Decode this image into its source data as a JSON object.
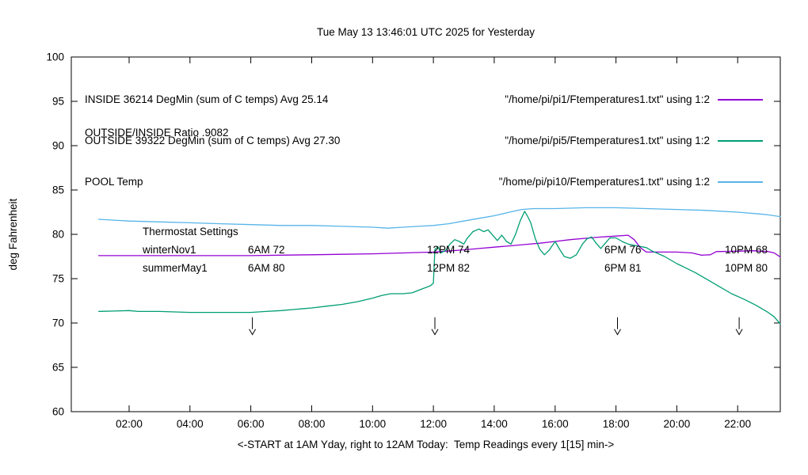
{
  "title": "Tue May 13 13:46:01 UTC 2025 for Yesterday",
  "y_axis_label": "deg Fahrenheit",
  "x_axis_label": "<-START at 1AM Yday, right to 12AM Today:  Temp Readings every 1[15] min->",
  "ratio_text": "OUTSIDE/INSIDE Ratio .9082",
  "legend": [
    {
      "label": "INSIDE 36214 DegMin (sum of C temps) Avg 25.14",
      "file": "\"/home/pi/pi1/Ftemperatures1.txt\" using 1:2",
      "color": "#9400d3"
    },
    {
      "label": "OUTSIDE 39322 DegMin (sum of C temps) Avg 27.30",
      "file": "\"/home/pi/pi5/Ftemperatures1.txt\" using 1:2",
      "color": "#009e73"
    },
    {
      "label": "POOL Temp",
      "file": "\"/home/pi/pi10/Ftemperatures1.txt\" using 1:2",
      "color": "#56b4e9"
    }
  ],
  "thermostat": {
    "title": "Thermostat Settings",
    "rows": [
      {
        "name": "winterNov1",
        "settings": [
          "6AM 72",
          "12PM 74",
          "6PM 76",
          "10PM 68"
        ]
      },
      {
        "name": "summerMay1",
        "settings": [
          "6AM 80",
          "12PM 82",
          "6PM 81",
          "10PM 80"
        ]
      }
    ]
  },
  "chart_data": {
    "type": "line",
    "title": "Tue May 13 13:46:01 UTC 2025 for Yesterday",
    "xlabel": "<-START at 1AM Yday, right to 12AM Today:  Temp Readings every 1[15] min->",
    "ylabel": "deg Fahrenheit",
    "ylim": [
      60,
      100
    ],
    "xlim": [
      0.1,
      23.4
    ],
    "grid": false,
    "legend_position": "top-left-inside",
    "y_ticks": [
      60,
      65,
      70,
      75,
      80,
      85,
      90,
      95,
      100
    ],
    "x_ticks": [
      {
        "value": 2,
        "label": "02:00"
      },
      {
        "value": 4,
        "label": "04:00"
      },
      {
        "value": 6,
        "label": "06:00"
      },
      {
        "value": 8,
        "label": "08:00"
      },
      {
        "value": 10,
        "label": "10:00"
      },
      {
        "value": 12,
        "label": "12:00"
      },
      {
        "value": 14,
        "label": "14:00"
      },
      {
        "value": 16,
        "label": "16:00"
      },
      {
        "value": 18,
        "label": "18:00"
      },
      {
        "value": 20,
        "label": "20:00"
      },
      {
        "value": 22,
        "label": "22:00"
      }
    ],
    "arrow_hours": [
      6.05,
      12.05,
      18.05,
      22.05
    ],
    "series": [
      {
        "name": "INSIDE",
        "color": "#9400d3",
        "points": [
          [
            1,
            77.6
          ],
          [
            2,
            77.6
          ],
          [
            3,
            77.6
          ],
          [
            4,
            77.6
          ],
          [
            5,
            77.6
          ],
          [
            6,
            77.6
          ],
          [
            7,
            77.65
          ],
          [
            8,
            77.7
          ],
          [
            9,
            77.75
          ],
          [
            10,
            77.8
          ],
          [
            11,
            77.9
          ],
          [
            12,
            78.0
          ],
          [
            12.4,
            78.1
          ],
          [
            13,
            78.25
          ],
          [
            13.5,
            78.4
          ],
          [
            14,
            78.55
          ],
          [
            14.5,
            78.7
          ],
          [
            15,
            78.85
          ],
          [
            15.5,
            79.0
          ],
          [
            16,
            79.2
          ],
          [
            16.5,
            79.4
          ],
          [
            17,
            79.55
          ],
          [
            17.5,
            79.7
          ],
          [
            18,
            79.8
          ],
          [
            18.4,
            79.9
          ],
          [
            18.6,
            79.4
          ],
          [
            18.8,
            78.5
          ],
          [
            19,
            78.0
          ],
          [
            19.5,
            78.0
          ],
          [
            20,
            78.0
          ],
          [
            20.5,
            77.9
          ],
          [
            20.8,
            77.65
          ],
          [
            21.1,
            77.7
          ],
          [
            21.3,
            78.05
          ],
          [
            22,
            78.1
          ],
          [
            22.5,
            78.15
          ],
          [
            23,
            78.05
          ],
          [
            23.2,
            77.9
          ],
          [
            23.4,
            77.45
          ]
        ]
      },
      {
        "name": "OUTSIDE",
        "color": "#009e73",
        "points": [
          [
            1,
            71.3
          ],
          [
            1.5,
            71.35
          ],
          [
            2,
            71.4
          ],
          [
            2.3,
            71.3
          ],
          [
            3,
            71.3
          ],
          [
            4,
            71.2
          ],
          [
            5,
            71.2
          ],
          [
            6,
            71.2
          ],
          [
            6.5,
            71.3
          ],
          [
            7,
            71.4
          ],
          [
            7.5,
            71.55
          ],
          [
            8,
            71.7
          ],
          [
            8.5,
            71.9
          ],
          [
            9,
            72.1
          ],
          [
            9.5,
            72.4
          ],
          [
            10,
            72.8
          ],
          [
            10.3,
            73.1
          ],
          [
            10.6,
            73.3
          ],
          [
            11,
            73.3
          ],
          [
            11.3,
            73.4
          ],
          [
            11.6,
            73.8
          ],
          [
            11.9,
            74.2
          ],
          [
            12,
            74.5
          ],
          [
            12.05,
            78.3
          ],
          [
            12.15,
            78.6
          ],
          [
            12.25,
            77.9
          ],
          [
            12.4,
            78.2
          ],
          [
            12.55,
            78.9
          ],
          [
            12.7,
            79.4
          ],
          [
            12.85,
            79.2
          ],
          [
            13,
            78.9
          ],
          [
            13.1,
            79.5
          ],
          [
            13.3,
            80.3
          ],
          [
            13.5,
            80.6
          ],
          [
            13.65,
            80.3
          ],
          [
            13.8,
            80.5
          ],
          [
            13.95,
            79.9
          ],
          [
            14.1,
            79.3
          ],
          [
            14.25,
            79.9
          ],
          [
            14.4,
            79.2
          ],
          [
            14.55,
            78.9
          ],
          [
            14.7,
            80.0
          ],
          [
            14.85,
            81.5
          ],
          [
            15,
            82.6
          ],
          [
            15.1,
            82.0
          ],
          [
            15.2,
            81.3
          ],
          [
            15.35,
            79.5
          ],
          [
            15.5,
            78.3
          ],
          [
            15.65,
            77.7
          ],
          [
            15.8,
            78.2
          ],
          [
            16,
            79.2
          ],
          [
            16.15,
            78.3
          ],
          [
            16.3,
            77.5
          ],
          [
            16.5,
            77.3
          ],
          [
            16.7,
            77.7
          ],
          [
            16.9,
            78.9
          ],
          [
            17.05,
            79.5
          ],
          [
            17.2,
            79.7
          ],
          [
            17.35,
            79.0
          ],
          [
            17.5,
            78.4
          ],
          [
            17.65,
            79.0
          ],
          [
            17.8,
            79.6
          ],
          [
            18,
            79.6
          ],
          [
            18.2,
            79.2
          ],
          [
            18.4,
            78.9
          ],
          [
            18.7,
            78.7
          ],
          [
            19,
            78.5
          ],
          [
            19.2,
            78.1
          ],
          [
            19.4,
            77.8
          ],
          [
            19.6,
            77.5
          ],
          [
            19.8,
            77.1
          ],
          [
            20,
            76.7
          ],
          [
            20.3,
            76.2
          ],
          [
            20.6,
            75.7
          ],
          [
            21,
            74.9
          ],
          [
            21.4,
            74.1
          ],
          [
            21.8,
            73.3
          ],
          [
            22.2,
            72.7
          ],
          [
            22.6,
            72.0
          ],
          [
            23,
            71.2
          ],
          [
            23.2,
            70.7
          ],
          [
            23.4,
            69.9
          ]
        ]
      },
      {
        "name": "POOL",
        "color": "#56b4e9",
        "points": [
          [
            1,
            81.7
          ],
          [
            1.5,
            81.6
          ],
          [
            2,
            81.5
          ],
          [
            3,
            81.4
          ],
          [
            4,
            81.3
          ],
          [
            5,
            81.2
          ],
          [
            6,
            81.1
          ],
          [
            7,
            81.0
          ],
          [
            8,
            81.0
          ],
          [
            9,
            80.9
          ],
          [
            10,
            80.8
          ],
          [
            10.5,
            80.7
          ],
          [
            11,
            80.8
          ],
          [
            11.5,
            80.9
          ],
          [
            12,
            81.0
          ],
          [
            12.5,
            81.2
          ],
          [
            13,
            81.5
          ],
          [
            13.5,
            81.8
          ],
          [
            14,
            82.1
          ],
          [
            14.5,
            82.5
          ],
          [
            14.9,
            82.8
          ],
          [
            15.3,
            82.9
          ],
          [
            16,
            82.9
          ],
          [
            17,
            83.0
          ],
          [
            18,
            83.0
          ],
          [
            19,
            82.9
          ],
          [
            20,
            82.8
          ],
          [
            21,
            82.7
          ],
          [
            22,
            82.5
          ],
          [
            22.7,
            82.3
          ],
          [
            23,
            82.2
          ],
          [
            23.4,
            82.0
          ]
        ]
      }
    ]
  }
}
